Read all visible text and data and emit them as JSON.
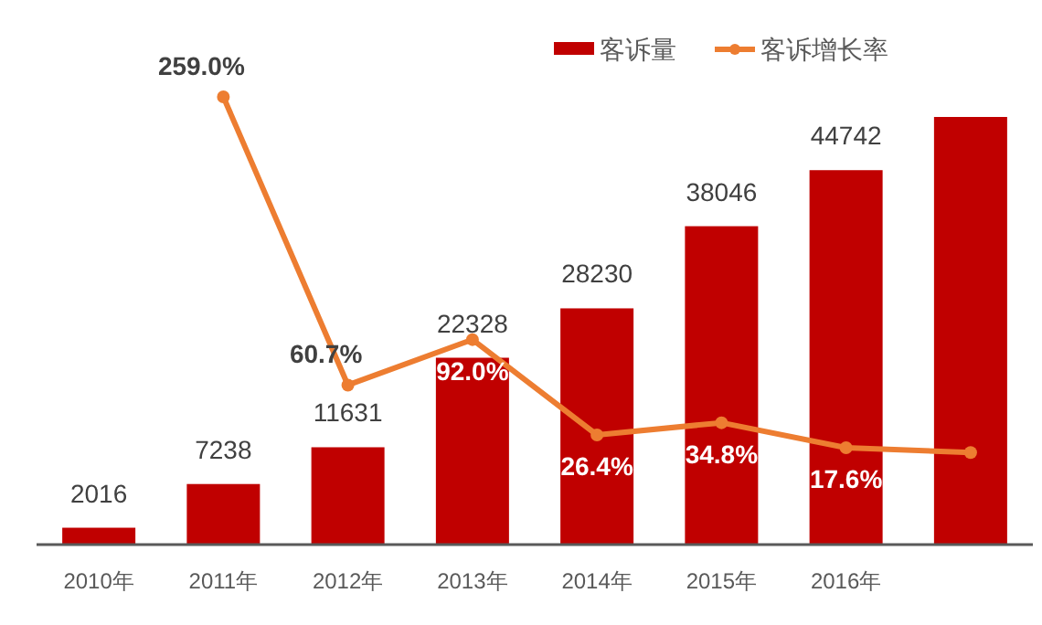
{
  "chart_data": {
    "type": "bar",
    "categories": [
      "2010年",
      "2011年",
      "2012年",
      "2013年",
      "2014年",
      "2015年",
      "2016年",
      null
    ],
    "series": [
      {
        "name": "客诉量",
        "color": "#c00000",
        "values": [
          2016,
          7238,
          11631,
          22328,
          28230,
          38046,
          44742,
          51100
        ],
        "value_labels": [
          "2016",
          "7238",
          "11631",
          "22328",
          "28230",
          "38046",
          "44742",
          null
        ]
      },
      {
        "name": "客诉增长率",
        "type": "line",
        "axis": "y2",
        "color": "#ed7d31",
        "marker": "circle",
        "values": [
          null,
          259.0,
          60.7,
          92.0,
          26.4,
          34.8,
          17.6,
          14.3
        ],
        "value_labels": [
          null,
          "259.0%",
          "60.7%",
          "92.0%",
          "26.4%",
          "34.8%",
          "17.6%",
          null
        ]
      }
    ],
    "legend": "top"
  }
}
